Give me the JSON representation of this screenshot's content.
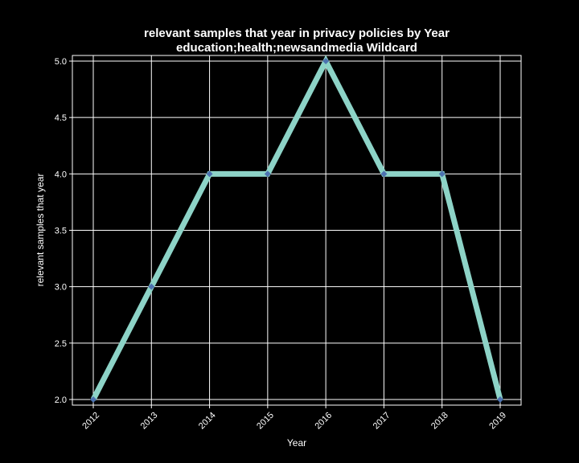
{
  "chart_data": {
    "type": "line",
    "title_line1": "relevant samples that year in privacy policies by Year",
    "title_line2": "education;health;newsandmedia Wildcard",
    "xlabel": "Year",
    "ylabel": "relevant samples that year",
    "categories": [
      "2012",
      "2013",
      "2014",
      "2015",
      "2016",
      "2017",
      "2018",
      "2019"
    ],
    "values": [
      2,
      3,
      4,
      4,
      5,
      4,
      4,
      2
    ],
    "ylim": [
      1.95,
      5.05
    ],
    "yticks": [
      "2.0",
      "2.5",
      "3.0",
      "3.5",
      "4.0",
      "4.5",
      "5.0"
    ],
    "grid": true,
    "line_color": "#8dd3c7",
    "marker_color": "#4c72b0",
    "background": "#000000",
    "foreground": "#ffffff"
  }
}
